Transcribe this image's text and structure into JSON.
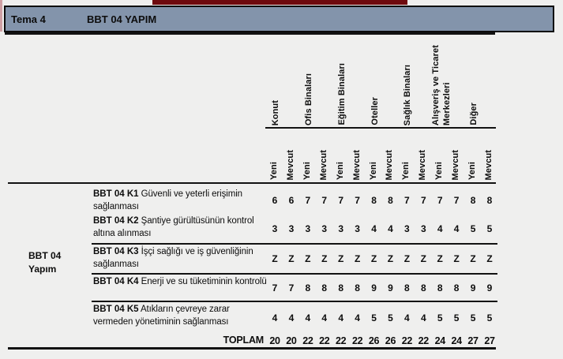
{
  "header": {
    "tema": "Tema 4",
    "title": "BBT 04 YAPIM"
  },
  "side_label": {
    "line1": "BBT 04",
    "line2": "Yapım"
  },
  "table": {
    "categories": [
      {
        "label": "Konut"
      },
      {
        "label": "Ofis Binaları"
      },
      {
        "label": "Eğitim Binaları"
      },
      {
        "label": "Oteller"
      },
      {
        "label": "Sağlık Binaları"
      },
      {
        "label": "Alışveriş ve Ticaret",
        "label2": "Merkezleri"
      },
      {
        "label": "Diğer"
      }
    ],
    "subheaders": [
      "Yeni",
      "Mevcut"
    ],
    "rows": [
      {
        "code": "BBT 04 K1",
        "desc": "Güvenli ve yeterli erişimin sağlanması",
        "values": [
          "6",
          "6",
          "7",
          "7",
          "7",
          "7",
          "8",
          "8",
          "7",
          "7",
          "7",
          "7",
          "8",
          "8"
        ]
      },
      {
        "code": "BBT 04 K2",
        "desc": "Şantiye gürültüsünün kontrol altına alınması",
        "values": [
          "3",
          "3",
          "3",
          "3",
          "3",
          "3",
          "4",
          "4",
          "3",
          "3",
          "4",
          "4",
          "5",
          "5"
        ]
      },
      {
        "code": "BBT 04 K3",
        "desc": "İşçi sağlığı ve iş güvenliğinin sağlanması",
        "values": [
          "Z",
          "Z",
          "Z",
          "Z",
          "Z",
          "Z",
          "Z",
          "Z",
          "Z",
          "Z",
          "Z",
          "Z",
          "Z",
          "Z"
        ]
      },
      {
        "code": "BBT 04 K4",
        "desc": "Enerji ve su tüketiminin kontrolü",
        "values": [
          "7",
          "7",
          "8",
          "8",
          "8",
          "8",
          "9",
          "9",
          "8",
          "8",
          "8",
          "8",
          "9",
          "9"
        ]
      },
      {
        "code": "BBT 04 K5",
        "desc": "Atıkların çevreye zarar vermeden yönetiminin sağlanması",
        "values": [
          "4",
          "4",
          "4",
          "4",
          "4",
          "4",
          "5",
          "5",
          "4",
          "4",
          "5",
          "5",
          "5",
          "5"
        ]
      }
    ],
    "total": {
      "label": "TOPLAM",
      "values": [
        "20",
        "20",
        "22",
        "22",
        "22",
        "22",
        "26",
        "26",
        "22",
        "22",
        "24",
        "24",
        "27",
        "27"
      ]
    }
  },
  "colors": {
    "background": "#efefee",
    "band": "#8394ab",
    "accent_bar": "#6e0a0e",
    "pink_edge": "#cfa0a4",
    "line": "#121212"
  }
}
